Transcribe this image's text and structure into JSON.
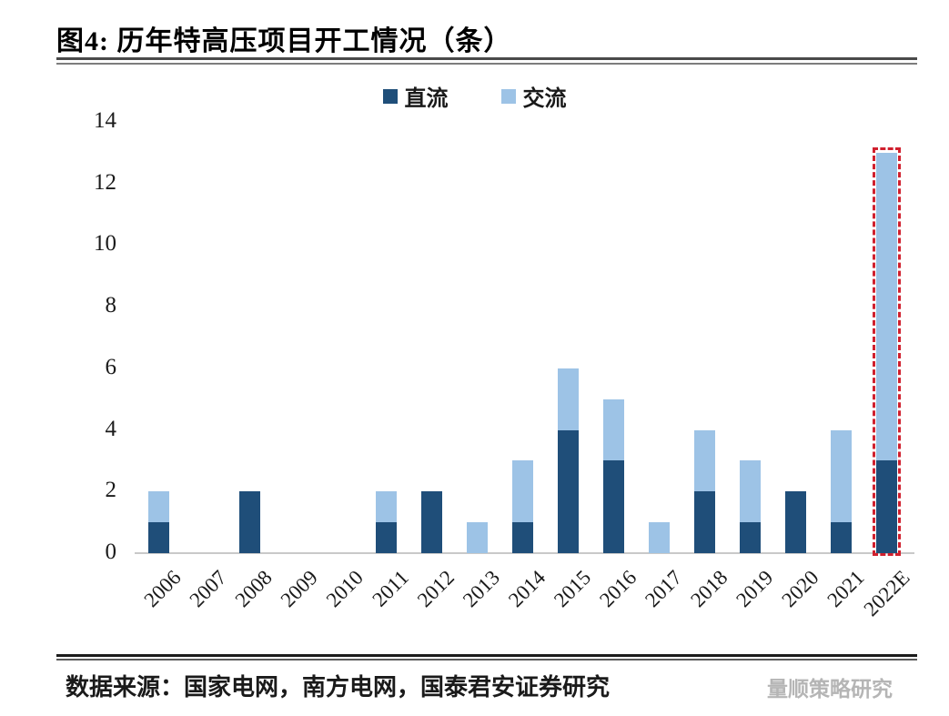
{
  "title": "图4: 历年特高压项目开工情况（条）",
  "footer": {
    "source": "数据来源：国家电网，南方电网，国泰君安证券研究",
    "watermark": "量顺策略研究"
  },
  "chart_data": {
    "type": "bar",
    "stacked": true,
    "title": "历年特高压项目开工情况（条）",
    "categories": [
      "2006",
      "2007",
      "2008",
      "2009",
      "2010",
      "2011",
      "2012",
      "2013",
      "2014",
      "2015",
      "2016",
      "2017",
      "2018",
      "2019",
      "2020",
      "2021",
      "2022E"
    ],
    "series": [
      {
        "name": "直流",
        "color": "#1f4e79",
        "values": [
          1,
          0,
          2,
          0,
          0,
          1,
          2,
          0,
          1,
          4,
          3,
          0,
          2,
          1,
          2,
          1,
          3
        ]
      },
      {
        "name": "交流",
        "color": "#9dc3e6",
        "values": [
          1,
          0,
          0,
          0,
          0,
          1,
          0,
          1,
          2,
          2,
          2,
          1,
          2,
          2,
          0,
          3,
          10
        ]
      }
    ],
    "totals": [
      2,
      0,
      2,
      0,
      0,
      2,
      2,
      1,
      3,
      6,
      5,
      1,
      4,
      3,
      2,
      4,
      13
    ],
    "xlabel": "",
    "ylabel": "",
    "y_ticks": [
      0,
      2,
      4,
      6,
      8,
      10,
      12,
      14
    ],
    "ylim": [
      0,
      14
    ],
    "grid": false,
    "legend_position": "top-center",
    "highlight": {
      "category": "2022E",
      "style": "dashed-box",
      "color": "#d0202e"
    },
    "baseline_color": "#c9c9c9"
  }
}
